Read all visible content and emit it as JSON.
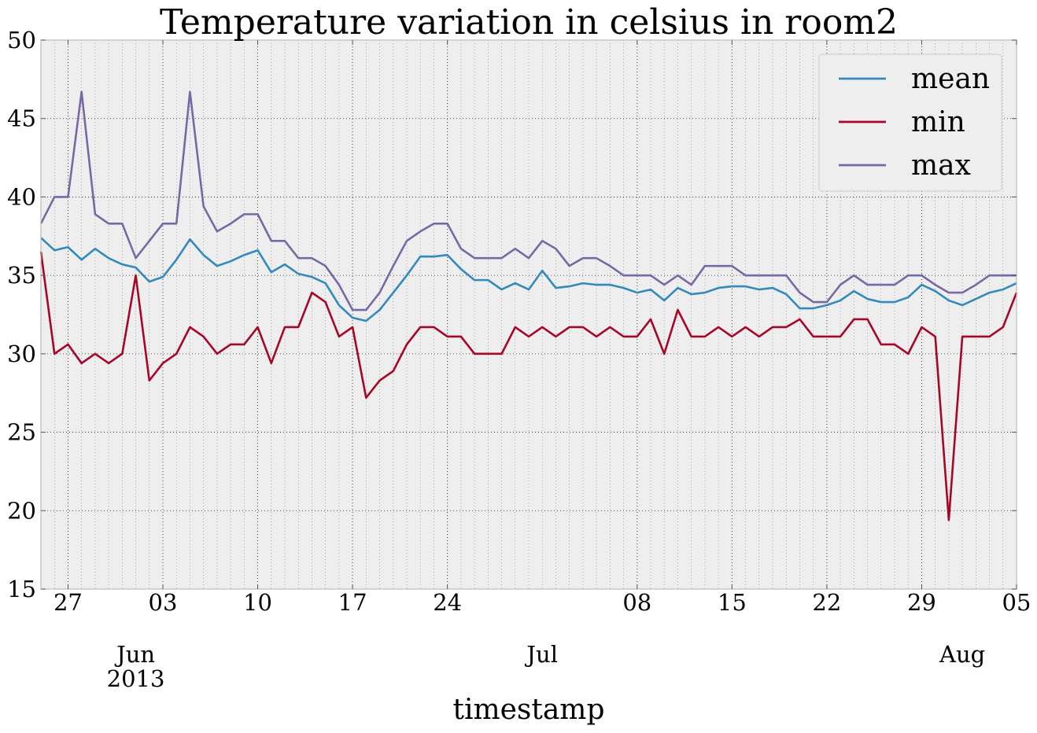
{
  "chart_data": {
    "type": "line",
    "title": "Temperature variation in celsius in room2",
    "xlabel": "timestamp",
    "ylabel": "",
    "ylim": [
      15,
      50
    ],
    "yticks": [
      15,
      20,
      25,
      30,
      35,
      40,
      45,
      50
    ],
    "grid": true,
    "legend_position": "top-right",
    "x_start": "2013-05-25",
    "x_end": "2013-08-05",
    "x_major_ticks": [
      {
        "date": "2013-05-27",
        "label": "27"
      },
      {
        "date": "2013-06-03",
        "label": "03"
      },
      {
        "date": "2013-06-10",
        "label": "10"
      },
      {
        "date": "2013-06-17",
        "label": "17"
      },
      {
        "date": "2013-06-24",
        "label": "24"
      },
      {
        "date": "2013-07-08",
        "label": "08"
      },
      {
        "date": "2013-07-15",
        "label": "15"
      },
      {
        "date": "2013-07-22",
        "label": "22"
      },
      {
        "date": "2013-07-29",
        "label": "29"
      },
      {
        "date": "2013-08-05",
        "label": "05"
      }
    ],
    "x_month_labels": [
      {
        "date": "2013-06-01",
        "label": "Jun",
        "year": "2013"
      },
      {
        "date": "2013-07-01",
        "label": "Jul",
        "year": ""
      },
      {
        "date": "2013-08-01",
        "label": "Aug",
        "year": ""
      }
    ],
    "series": [
      {
        "name": "mean",
        "color": "#348abd",
        "values": [
          37.4,
          36.6,
          36.8,
          36.0,
          36.7,
          36.1,
          35.7,
          35.5,
          34.6,
          34.9,
          36.0,
          37.3,
          36.3,
          35.6,
          35.9,
          36.3,
          36.6,
          35.2,
          35.7,
          35.1,
          34.9,
          34.5,
          33.1,
          32.3,
          32.1,
          32.8,
          33.9,
          35.0,
          36.2,
          36.2,
          36.3,
          35.4,
          34.7,
          34.7,
          34.1,
          34.5,
          34.1,
          35.3,
          34.2,
          34.3,
          34.5,
          34.4,
          34.4,
          34.2,
          33.9,
          34.1,
          33.4,
          34.2,
          33.8,
          33.9,
          34.2,
          34.3,
          34.3,
          34.1,
          34.2,
          33.8,
          32.9,
          32.9,
          33.1,
          33.4,
          34.0,
          33.5,
          33.3,
          33.3,
          33.6,
          34.4,
          34.0,
          33.4,
          33.1,
          33.5,
          33.9,
          34.1,
          34.5
        ]
      },
      {
        "name": "min",
        "color": "#a60628",
        "values": [
          36.5,
          30.0,
          30.6,
          29.4,
          30.0,
          29.4,
          30.0,
          35.0,
          28.3,
          29.4,
          30.0,
          31.7,
          31.1,
          30.0,
          30.6,
          30.6,
          31.7,
          29.4,
          31.7,
          31.7,
          33.9,
          33.3,
          31.1,
          31.7,
          27.2,
          28.3,
          28.9,
          30.6,
          31.7,
          31.7,
          31.1,
          31.1,
          30.0,
          30.0,
          30.0,
          31.7,
          31.1,
          31.7,
          31.1,
          31.7,
          31.7,
          31.1,
          31.7,
          31.1,
          31.1,
          32.2,
          30.0,
          32.8,
          31.1,
          31.1,
          31.7,
          31.1,
          31.7,
          31.1,
          31.7,
          31.7,
          32.2,
          31.1,
          31.1,
          31.1,
          32.2,
          32.2,
          30.6,
          30.6,
          30.0,
          31.7,
          31.1,
          19.4,
          31.1,
          31.1,
          31.1,
          31.7,
          33.9
        ]
      },
      {
        "name": "max",
        "color": "#7a68a6",
        "values": [
          38.3,
          40.0,
          40.0,
          46.7,
          38.9,
          38.3,
          38.3,
          36.1,
          37.2,
          38.3,
          38.3,
          46.7,
          39.4,
          37.8,
          38.3,
          38.9,
          38.9,
          37.2,
          37.2,
          36.1,
          36.1,
          35.6,
          34.4,
          32.8,
          32.8,
          33.9,
          35.6,
          37.2,
          37.8,
          38.3,
          38.3,
          36.7,
          36.1,
          36.1,
          36.1,
          36.7,
          36.1,
          37.2,
          36.7,
          35.6,
          36.1,
          36.1,
          35.6,
          35.0,
          35.0,
          35.0,
          34.4,
          35.0,
          34.4,
          35.6,
          35.6,
          35.6,
          35.0,
          35.0,
          35.0,
          35.0,
          33.9,
          33.3,
          33.3,
          34.4,
          35.0,
          34.4,
          34.4,
          34.4,
          35.0,
          35.0,
          34.4,
          33.9,
          33.9,
          34.4,
          35.0,
          35.0,
          35.0
        ]
      }
    ]
  },
  "colors": {
    "plot_background": "#eeeeee",
    "spine": "#bcbcbc",
    "grid": "#222222",
    "legend_background": "#eeeeee"
  }
}
